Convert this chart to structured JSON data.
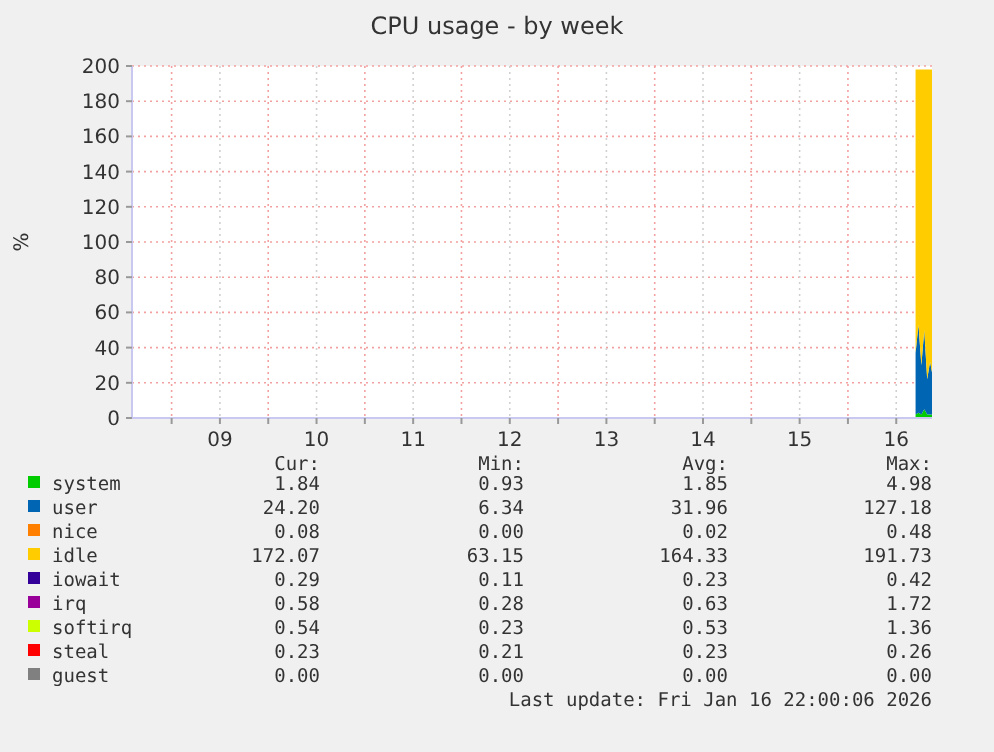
{
  "chart_data": {
    "type": "area",
    "stacked": true,
    "title": "CPU usage - by week",
    "ylabel": "%",
    "x": [
      16.7,
      16.73,
      16.76,
      16.79,
      16.82,
      16.85,
      16.87
    ],
    "xlim": [
      8.59,
      16.87
    ],
    "xticks": [
      {
        "value": 9,
        "label": null
      },
      {
        "value": 9.5,
        "label": "09"
      },
      {
        "value": 10,
        "label": null
      },
      {
        "value": 10.5,
        "label": "10"
      },
      {
        "value": 11,
        "label": null
      },
      {
        "value": 11.5,
        "label": "11"
      },
      {
        "value": 12,
        "label": null
      },
      {
        "value": 12.5,
        "label": "12"
      },
      {
        "value": 13,
        "label": null
      },
      {
        "value": 13.5,
        "label": "13"
      },
      {
        "value": 14,
        "label": null
      },
      {
        "value": 14.5,
        "label": "14"
      },
      {
        "value": 15,
        "label": null
      },
      {
        "value": 15.5,
        "label": "15"
      },
      {
        "value": 16,
        "label": null
      },
      {
        "value": 16.5,
        "label": "16"
      }
    ],
    "ylim": [
      0,
      200
    ],
    "yticks": [
      0,
      20,
      40,
      60,
      80,
      100,
      120,
      140,
      160,
      180,
      200
    ],
    "grid": true,
    "legend": "bottom",
    "series": [
      {
        "name": "system",
        "color": "#00cc00",
        "values": [
          2,
          3,
          2,
          5,
          2,
          2,
          2
        ]
      },
      {
        "name": "user",
        "color": "#0066b3",
        "values": [
          35,
          50,
          28,
          45,
          20,
          30,
          24
        ]
      },
      {
        "name": "nice",
        "color": "#ff8000",
        "values": [
          null,
          null,
          null,
          null,
          null,
          null,
          null
        ]
      },
      {
        "name": "idle",
        "color": "#ffcc00",
        "values": [
          161,
          145,
          168,
          148,
          176,
          166,
          172
        ]
      },
      {
        "name": "iowait",
        "color": "#330099",
        "values": [
          null,
          null,
          null,
          null,
          null,
          null,
          null
        ]
      },
      {
        "name": "irq",
        "color": "#990099",
        "values": [
          null,
          null,
          null,
          null,
          null,
          null,
          null
        ]
      },
      {
        "name": "softirq",
        "color": "#ccff00",
        "values": [
          null,
          null,
          null,
          null,
          null,
          null,
          null
        ]
      },
      {
        "name": "steal",
        "color": "#ff0000",
        "values": [
          null,
          null,
          null,
          null,
          null,
          null,
          null
        ]
      },
      {
        "name": "guest",
        "color": "#808080",
        "values": [
          null,
          null,
          null,
          null,
          null,
          null,
          null
        ]
      }
    ],
    "annotations": [
      "Cur:",
      "Min:",
      "Avg:",
      "Max:",
      "1.84",
      "0.93",
      "1.85",
      "4.98",
      "24.20",
      "6.34",
      "31.96",
      "127.18",
      "0.08",
      "0.00",
      "0.02",
      "0.48",
      "172.07",
      "63.15",
      "164.33",
      "191.73",
      "0.29",
      "0.11",
      "0.23",
      "0.42",
      "0.58",
      "0.28",
      "0.63",
      "1.72",
      "0.54",
      "0.23",
      "0.53",
      "1.36",
      "0.23",
      "0.21",
      "0.23",
      "0.26",
      "0.00",
      "0.00",
      "0.00",
      "0.00",
      "Last update: Fri Jan 16 22:00:06 2026"
    ]
  }
}
